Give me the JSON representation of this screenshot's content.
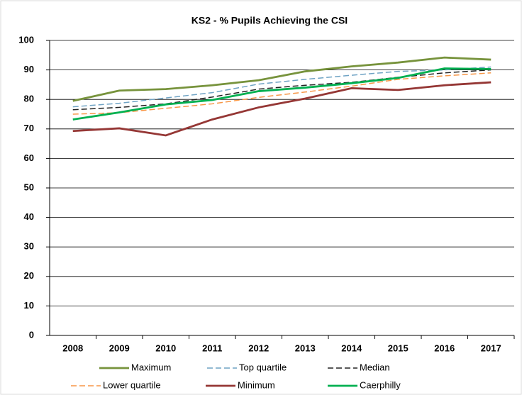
{
  "chart_data": {
    "type": "line",
    "title": "KS2 - % Pupils Achieving the CSI",
    "categories": [
      "2008",
      "2009",
      "2010",
      "2011",
      "2012",
      "2013",
      "2014",
      "2015",
      "2016",
      "2017"
    ],
    "series": [
      {
        "name": "Maximum",
        "color": "#77933c",
        "dash": false,
        "values": [
          79.5,
          83,
          83.5,
          84.8,
          86.5,
          89.5,
          91.2,
          92.5,
          94.2,
          93.5
        ]
      },
      {
        "name": "Top quartile",
        "color": "#6fa3c4",
        "dash": true,
        "values": [
          77.5,
          78.7,
          80.5,
          82.3,
          85.2,
          86.8,
          88.2,
          89.5,
          90.0,
          91.0
        ]
      },
      {
        "name": "Median",
        "color": "#222222",
        "dash": true,
        "values": [
          76.5,
          77.3,
          78.5,
          80.8,
          83.5,
          84.8,
          85.8,
          87.5,
          89.0,
          90.0
        ]
      },
      {
        "name": "Lower quartile",
        "color": "#f79646",
        "dash": true,
        "values": [
          75.0,
          75.5,
          77.0,
          78.5,
          80.7,
          82.5,
          84.5,
          86.8,
          88.0,
          89.0
        ]
      },
      {
        "name": "Minimum",
        "color": "#953735",
        "dash": false,
        "values": [
          69.3,
          70.2,
          67.8,
          73.2,
          77.3,
          80.3,
          83.8,
          83.2,
          84.8,
          85.8
        ]
      },
      {
        "name": "Caerphilly",
        "color": "#00b050",
        "dash": false,
        "values": [
          73.2,
          75.6,
          78.3,
          79.8,
          82.8,
          84.0,
          85.5,
          87.3,
          90.5,
          90.3
        ]
      }
    ],
    "ylim": [
      0,
      100
    ],
    "yticks": [
      0,
      10,
      20,
      30,
      40,
      50,
      60,
      70,
      80,
      90,
      100
    ],
    "grid": true
  }
}
